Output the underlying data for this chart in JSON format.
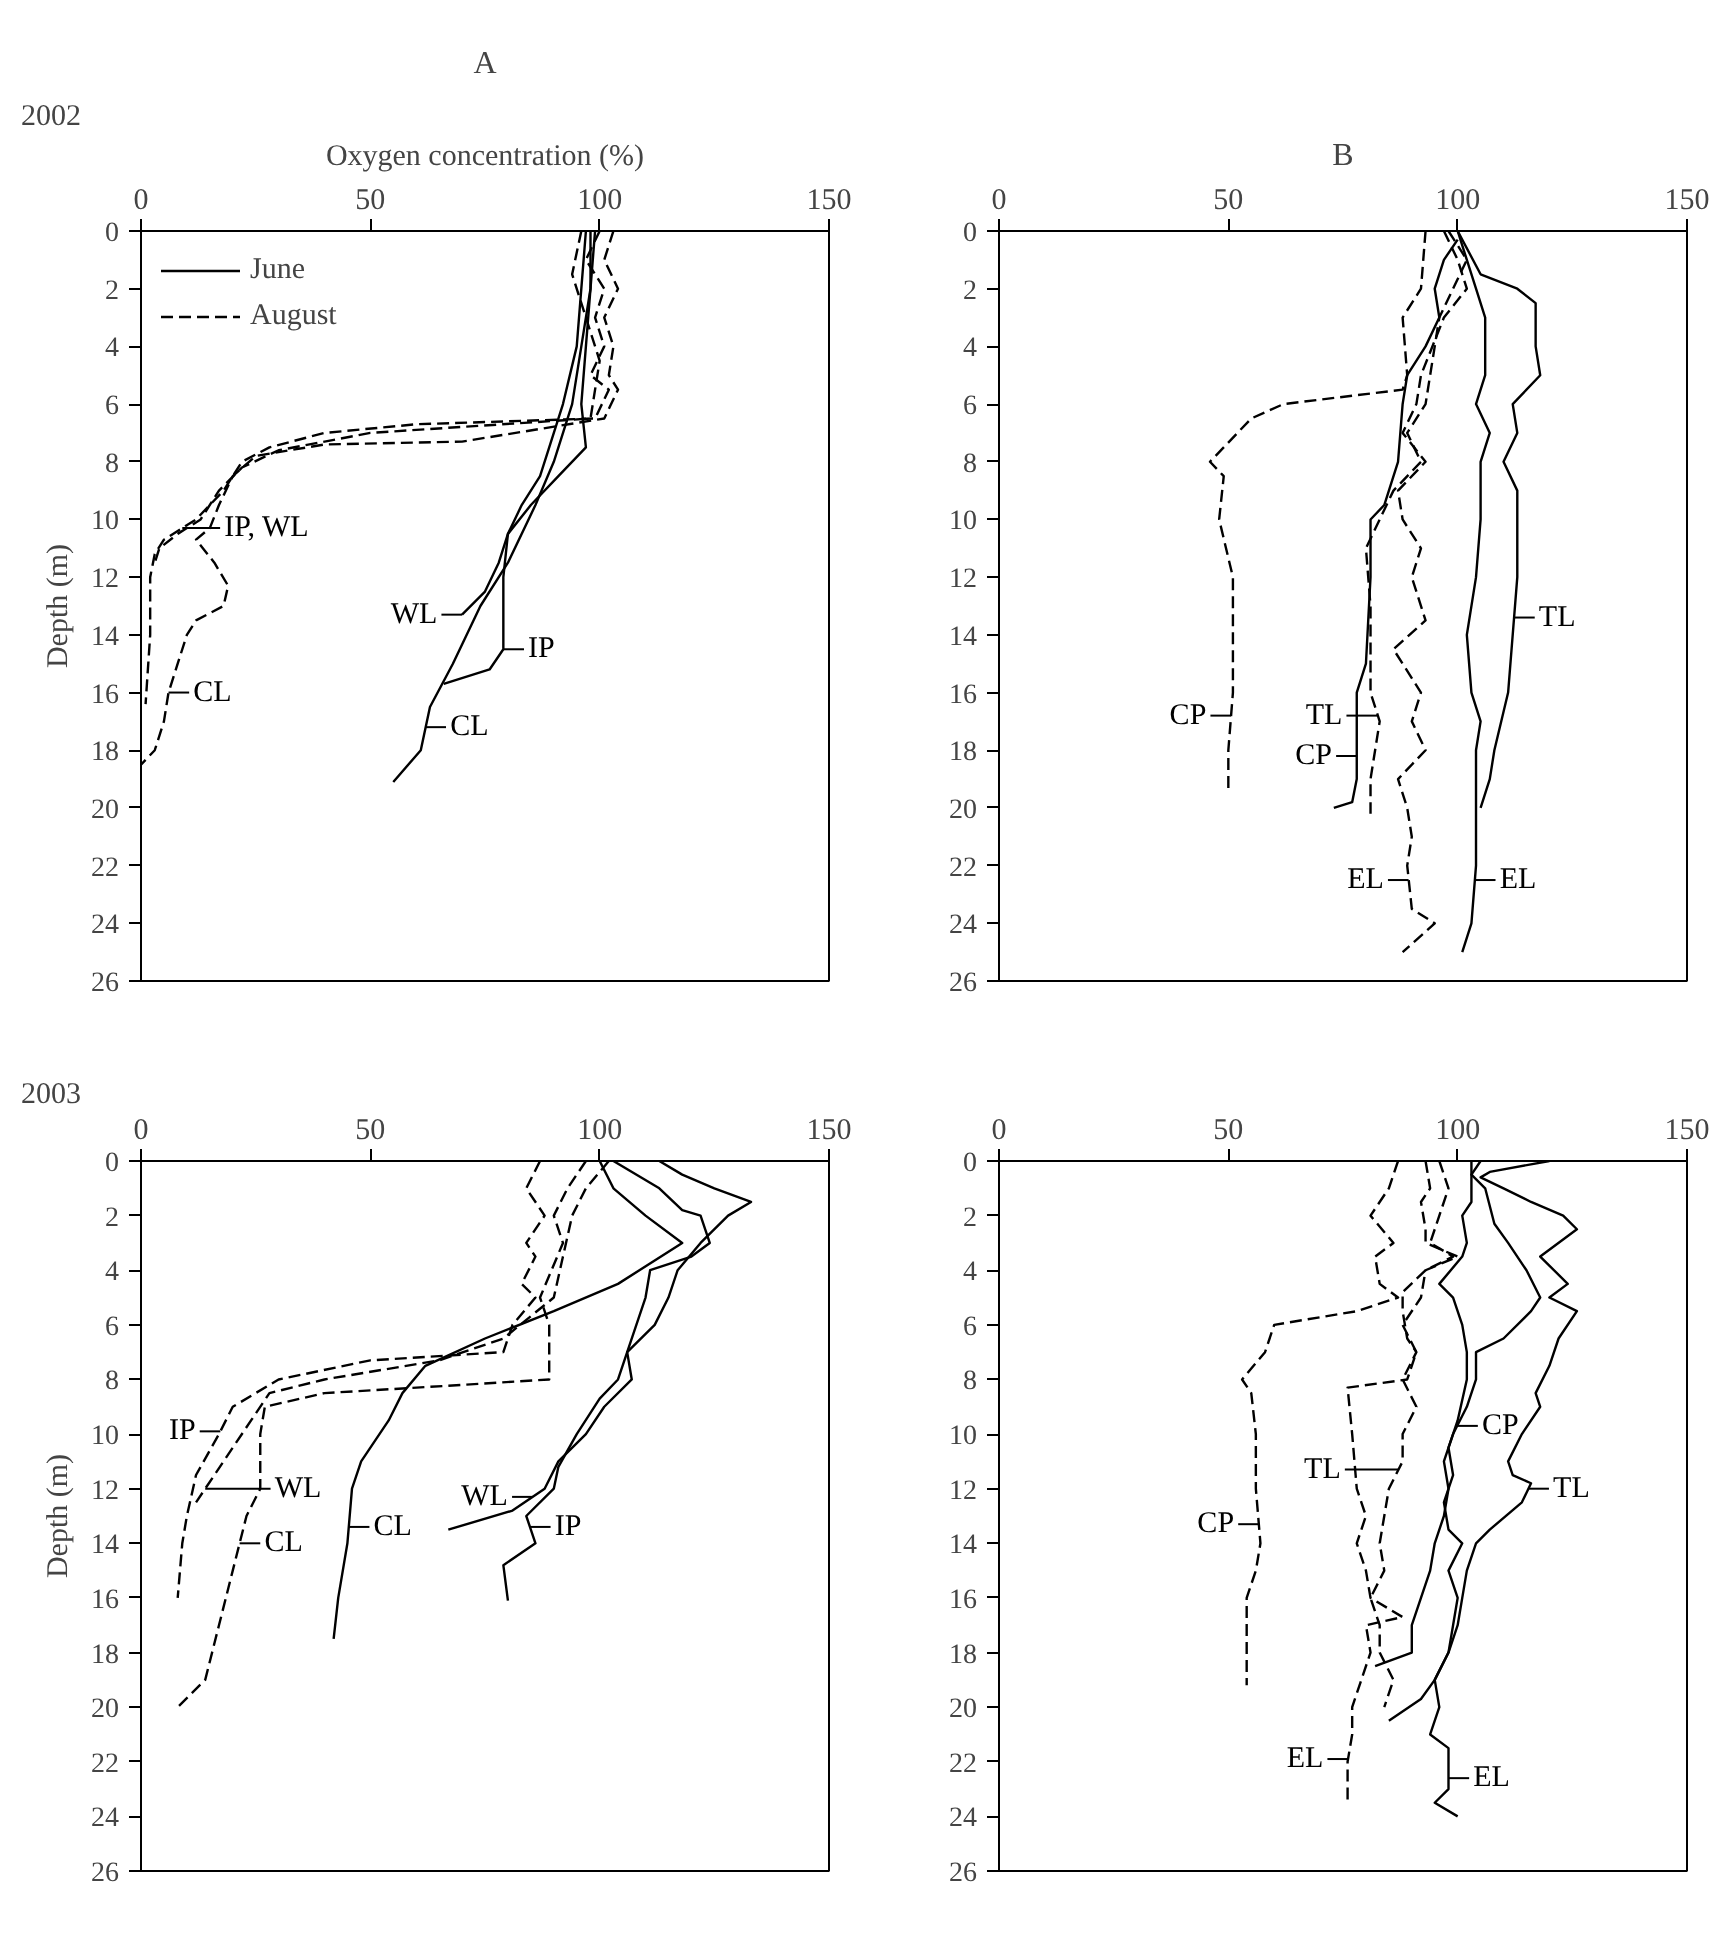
{
  "chart_data": [
    {
      "type": "line",
      "title": "A",
      "subtitle": "2002",
      "xlabel": "Oxygen concentration (%)",
      "ylabel": "Depth (m)",
      "xlim": [
        0,
        150
      ],
      "ylim": [
        26,
        0
      ],
      "xticks": [
        0,
        50,
        100,
        150
      ],
      "yticks": [
        0,
        2,
        4,
        6,
        8,
        10,
        12,
        14,
        16,
        18,
        20,
        22,
        24,
        26
      ],
      "legend": "top left",
      "series": [
        {
          "name": "June",
          "color": "#000000",
          "line_style": "solid",
          "x": [
            97,
            96,
            95,
            92,
            89,
            87,
            83,
            80,
            78,
            75,
            70
          ],
          "values": [
            0,
            2,
            4,
            6,
            7.5,
            8.5,
            9.5,
            10.5,
            11.5,
            12.5,
            13.3
          ]
        },
        {
          "color": "#000000",
          "line_style": "solid",
          "x": [
            98,
            98,
            97,
            96,
            97,
            91,
            85,
            80,
            79,
            79,
            76,
            66
          ],
          "values": [
            0,
            2,
            4,
            6,
            7.5,
            8.5,
            9.5,
            10.5,
            12,
            14.5,
            15.2,
            15.7
          ]
        },
        {
          "color": "#000000",
          "line_style": "solid",
          "x": [
            99,
            98,
            96,
            94,
            90,
            86,
            80,
            74,
            68,
            63,
            61,
            55
          ],
          "values": [
            0,
            2,
            4,
            6,
            8,
            9.5,
            11.5,
            13,
            15,
            16.5,
            18,
            19.1
          ]
        },
        {
          "name": "August",
          "color": "#000000",
          "line_style": "dashed",
          "x": [
            100,
            97,
            101,
            99,
            101,
            98,
            102,
            99,
            60,
            40,
            28,
            22,
            18,
            12,
            5,
            3,
            2,
            2,
            1
          ],
          "values": [
            0,
            1,
            2,
            3,
            4,
            5,
            5.5,
            6.5,
            6.7,
            7,
            7.5,
            8,
            9,
            10,
            10.7,
            11.2,
            12,
            14,
            16.4
          ]
        },
        {
          "color": "#000000",
          "line_style": "dashed",
          "x": [
            96,
            94,
            97,
            100,
            98,
            50,
            30,
            22,
            17,
            13,
            8,
            4,
            3
          ],
          "values": [
            0,
            1.5,
            3,
            4.5,
            6.5,
            7,
            7.6,
            8.2,
            9,
            10,
            10.5,
            11,
            11.5
          ]
        },
        {
          "color": "#000000",
          "line_style": "dashed",
          "x": [
            103,
            101,
            104,
            101,
            103,
            102,
            104,
            101,
            70,
            40,
            25,
            20,
            17,
            15,
            12,
            16,
            19,
            18,
            12,
            10,
            8,
            6,
            5,
            3,
            0
          ],
          "values": [
            0,
            1,
            2,
            3,
            4,
            5,
            5.5,
            6.5,
            7.3,
            7.4,
            7.8,
            8.5,
            9.5,
            10.3,
            10.7,
            11.5,
            12.3,
            13,
            13.5,
            14,
            15,
            16,
            17,
            18,
            18.5
          ]
        }
      ],
      "annotations": [
        {
          "text": "IP, WL",
          "x": 9,
          "y": 10.3
        },
        {
          "text": "WL",
          "x": 70,
          "y": 13.3
        },
        {
          "text": "IP",
          "x": 79,
          "y": 14.5
        },
        {
          "text": "CL",
          "x": 6,
          "y": 16
        },
        {
          "text": "CL",
          "x": 62,
          "y": 17.2
        }
      ]
    },
    {
      "type": "line",
      "title": "B",
      "xlim": [
        0,
        150
      ],
      "ylim": [
        26,
        0
      ],
      "xticks": [
        0,
        50,
        100,
        150
      ],
      "yticks": [
        0,
        2,
        4,
        6,
        8,
        10,
        12,
        14,
        16,
        18,
        20,
        22,
        24,
        26
      ],
      "series": [
        {
          "color": "#000000",
          "line_style": "solid",
          "x": [
            100,
            105,
            113,
            117,
            117,
            118,
            112,
            113,
            110,
            113,
            113,
            111,
            108,
            107,
            105
          ],
          "values": [
            0,
            1.5,
            2,
            2.5,
            4,
            5,
            6,
            7,
            8,
            9,
            12,
            16,
            18,
            19,
            20
          ]
        },
        {
          "color": "#000000",
          "line_style": "solid",
          "x": [
            100,
            104,
            106,
            106,
            104,
            107,
            105,
            105,
            104,
            102,
            103,
            105,
            104,
            104,
            104,
            103,
            101
          ],
          "values": [
            0,
            2,
            3,
            5,
            6,
            7,
            8,
            10,
            12,
            14,
            16,
            17,
            18,
            20,
            22,
            24,
            25
          ]
        },
        {
          "color": "#000000",
          "line_style": "solid",
          "x": [
            100,
            97,
            95,
            96,
            93,
            89,
            88,
            87,
            84,
            81,
            81,
            80,
            78,
            78,
            77,
            73
          ],
          "values": [
            0.3,
            1,
            2,
            3,
            4,
            5,
            6,
            8,
            9.5,
            10,
            12,
            15,
            16,
            19,
            19.8,
            20
          ]
        },
        {
          "color": "#000000",
          "line_style": "dashed",
          "x": [
            93,
            92,
            88,
            89,
            88,
            62,
            55,
            46,
            49,
            48,
            51,
            51,
            50,
            50
          ],
          "values": [
            0,
            2,
            3,
            5,
            5.5,
            6,
            6.5,
            8,
            8.5,
            10,
            12,
            16,
            18,
            19.5
          ]
        },
        {
          "color": "#000000",
          "line_style": "dashed",
          "x": [
            98,
            102,
            99,
            96,
            95,
            94,
            93,
            89,
            92,
            86,
            83,
            80,
            81,
            81,
            83,
            81,
            81
          ],
          "values": [
            0,
            1,
            2,
            3,
            4,
            5,
            6,
            7,
            8,
            9,
            10,
            11,
            13,
            16,
            17,
            19,
            20.2
          ]
        },
        {
          "color": "#000000",
          "line_style": "dashed",
          "x": [
            97,
            100,
            102,
            97,
            92,
            91,
            88,
            93,
            87,
            88,
            92,
            90,
            93,
            86,
            92,
            90,
            93,
            87,
            89,
            90,
            89,
            90,
            95,
            88
          ],
          "values": [
            0,
            1,
            2,
            3,
            5,
            6,
            7,
            8,
            9,
            10,
            11,
            12,
            13.5,
            14.5,
            16,
            17,
            18,
            19,
            20,
            21,
            22,
            23.5,
            24,
            25
          ]
        }
      ],
      "annotations": [
        {
          "text": "TL",
          "x": 112.3,
          "y": 13.4
        },
        {
          "text": "CP",
          "x": 50.6,
          "y": 16.8
        },
        {
          "text": "TL",
          "x": 82.6,
          "y": 16.8
        },
        {
          "text": "CP",
          "x": 78,
          "y": 18.2
        },
        {
          "text": "EL",
          "x": 89.3,
          "y": 22.5
        },
        {
          "text": "EL",
          "x": 103.75,
          "y": 22.5
        }
      ]
    },
    {
      "type": "line",
      "subtitle": "2003",
      "ylabel": "Depth (m)",
      "xlim": [
        0,
        150
      ],
      "ylim": [
        26,
        0
      ],
      "xticks": [
        0,
        50,
        100,
        150
      ],
      "yticks": [
        0,
        2,
        4,
        6,
        8,
        10,
        12,
        14,
        16,
        18,
        20,
        22,
        24,
        26
      ],
      "series": [
        {
          "color": "#000000",
          "line_style": "solid",
          "x": [
            100,
            103,
            110,
            118,
            104,
            90,
            75,
            62,
            57,
            54,
            48,
            46,
            45,
            43,
            42
          ],
          "values": [
            0,
            1,
            2,
            3,
            4.5,
            5.5,
            6.5,
            7.5,
            8.5,
            9.5,
            11,
            12,
            14,
            16,
            17.5
          ]
        },
        {
          "color": "#000000",
          "line_style": "solid",
          "x": [
            103,
            113,
            118,
            122,
            124,
            120,
            111,
            110,
            106,
            107,
            101,
            97,
            91,
            88,
            81,
            67
          ],
          "values": [
            0,
            1,
            1.8,
            2,
            3,
            3.5,
            4,
            5,
            7,
            8,
            9,
            10,
            11,
            12,
            12.8,
            13.5
          ]
        },
        {
          "color": "#000000",
          "line_style": "solid",
          "x": [
            113,
            118,
            125,
            133,
            128,
            122,
            117,
            115,
            112,
            106,
            104,
            100,
            95,
            91,
            90,
            84,
            86,
            79,
            80
          ],
          "values": [
            0,
            0.5,
            1,
            1.5,
            2,
            3,
            4,
            5,
            6,
            7,
            8,
            8.7,
            10,
            11.2,
            12,
            13,
            14,
            14.8,
            16.1
          ]
        },
        {
          "color": "#000000",
          "line_style": "dashed",
          "x": [
            87,
            84,
            88,
            84,
            86,
            83,
            86,
            81,
            79,
            50,
            30,
            25,
            20,
            17,
            12,
            10,
            9,
            8
          ],
          "values": [
            0,
            1,
            2,
            3,
            3.5,
            4.5,
            5,
            6,
            7,
            7.3,
            8,
            8.5,
            9,
            10,
            11.5,
            13,
            14,
            16
          ]
        },
        {
          "color": "#000000",
          "line_style": "dashed",
          "x": [
            97,
            93,
            90,
            92,
            87,
            89,
            89,
            70,
            40,
            27,
            26,
            26,
            23,
            20,
            17,
            14,
            8
          ],
          "values": [
            0,
            1,
            2,
            3,
            5,
            6,
            8,
            8.2,
            8.5,
            9,
            10,
            12,
            13,
            15,
            17,
            19,
            20
          ]
        },
        {
          "color": "#000000",
          "line_style": "dashed",
          "x": [
            102,
            97,
            94,
            92,
            90,
            79,
            65,
            40,
            28,
            24,
            18,
            14,
            12
          ],
          "values": [
            0,
            1,
            2,
            3.5,
            5,
            6.5,
            7.3,
            8,
            8.5,
            9.5,
            11,
            12,
            12.5
          ]
        }
      ],
      "annotations": [
        {
          "text": "IP",
          "x": 17.3,
          "y": 9.9
        },
        {
          "text": "WL",
          "x": 14,
          "y": 12
        },
        {
          "text": "CL",
          "x": 21.5,
          "y": 14
        },
        {
          "text": "CL",
          "x": 45.3,
          "y": 13.4
        },
        {
          "text": "WL",
          "x": 85.4,
          "y": 12.3
        },
        {
          "text": "IP",
          "x": 84.8,
          "y": 13.4
        }
      ]
    },
    {
      "type": "line",
      "xlim": [
        0,
        150
      ],
      "ylim": [
        26,
        0
      ],
      "xticks": [
        0,
        50,
        100,
        150
      ],
      "yticks": [
        0,
        2,
        4,
        6,
        8,
        10,
        12,
        14,
        16,
        18,
        20,
        22,
        24,
        26
      ],
      "series": [
        {
          "color": "#000000",
          "line_style": "solid",
          "x": [
            120,
            107,
            105,
            110,
            116,
            123,
            126,
            118,
            124,
            120,
            126,
            122,
            120,
            117,
            118,
            114,
            111,
            112,
            116,
            114,
            107,
            104,
            102,
            101,
            100,
            98,
            95,
            92,
            85
          ],
          "values": [
            0,
            0.4,
            0.6,
            1,
            1.5,
            2,
            2.5,
            3.5,
            4.5,
            5,
            5.5,
            6.5,
            7.5,
            8.5,
            9,
            10,
            11,
            11.5,
            11.8,
            12.5,
            13.5,
            14,
            15,
            16,
            17,
            18,
            19,
            19.7,
            20.5
          ]
        },
        {
          "color": "#000000",
          "line_style": "solid",
          "x": [
            105,
            103,
            106,
            108,
            111,
            115,
            118,
            116,
            110,
            104,
            104,
            102,
            99,
            97,
            98,
            97,
            95,
            94,
            92,
            90,
            90,
            82
          ],
          "values": [
            0,
            0.5,
            1,
            2.3,
            3,
            4,
            5,
            5.5,
            6.5,
            7,
            8,
            9,
            10,
            11,
            12,
            13,
            14,
            15,
            16,
            17,
            18,
            18.5
          ]
        },
        {
          "color": "#000000",
          "line_style": "solid",
          "x": [
            103,
            103,
            101,
            102,
            101,
            96,
            99,
            101,
            102,
            102,
            100,
            98,
            99,
            97,
            98,
            101,
            98,
            100,
            99,
            98,
            95,
            96,
            94,
            98,
            98,
            95,
            100
          ],
          "values": [
            0,
            1.5,
            2,
            3,
            3.5,
            4.5,
            5,
            6,
            7,
            8,
            9.5,
            10.5,
            11.5,
            12.5,
            13.5,
            14,
            15,
            16,
            17,
            18,
            19,
            20,
            21,
            21.5,
            23,
            23.5,
            24
          ]
        },
        {
          "color": "#000000",
          "line_style": "dashed",
          "x": [
            87,
            85,
            81,
            86,
            82,
            83,
            87,
            78,
            60,
            58,
            53,
            55,
            56,
            56,
            57,
            56,
            54,
            54,
            54
          ],
          "values": [
            0,
            1,
            2,
            3,
            3.5,
            4.5,
            5,
            5.5,
            6,
            7,
            8,
            8.5,
            10,
            12,
            14,
            15,
            16,
            17,
            19.2
          ]
        },
        {
          "color": "#000000",
          "line_style": "dashed",
          "x": [
            93,
            94,
            92,
            93,
            93,
            100,
            93,
            92,
            88,
            91,
            89,
            76,
            77,
            78,
            80,
            78,
            80,
            81,
            88,
            80,
            81,
            79,
            77,
            77,
            76,
            76
          ],
          "values": [
            0,
            1,
            1.5,
            2.5,
            3,
            3.5,
            4,
            5,
            6,
            7,
            8,
            8.3,
            10,
            12,
            13,
            14,
            15,
            16,
            16.7,
            17,
            18,
            19,
            20,
            21,
            22,
            23.5
          ]
        },
        {
          "color": "#000000",
          "line_style": "dashed",
          "x": [
            96,
            98,
            96,
            94,
            99,
            93,
            88,
            88,
            89,
            91,
            88,
            91,
            88,
            88,
            85,
            84,
            83,
            84,
            81,
            83,
            83,
            86,
            84
          ],
          "values": [
            0,
            1,
            2,
            3,
            3.5,
            4,
            4.8,
            5.5,
            6.5,
            7,
            8,
            9,
            10,
            11,
            12,
            13,
            14,
            15,
            16,
            17,
            18,
            19,
            20
          ]
        }
      ],
      "annotations": [
        {
          "text": "CP",
          "x": 99.9,
          "y": 9.7
        },
        {
          "text": "TL",
          "x": 87.1,
          "y": 11.3
        },
        {
          "text": "TL",
          "x": 115.4,
          "y": 12
        },
        {
          "text": "CP",
          "x": 56.65,
          "y": 13.3
        },
        {
          "text": "EL",
          "x": 76.1,
          "y": 21.9
        },
        {
          "text": "EL",
          "x": 98,
          "y": 22.6
        }
      ]
    }
  ]
}
